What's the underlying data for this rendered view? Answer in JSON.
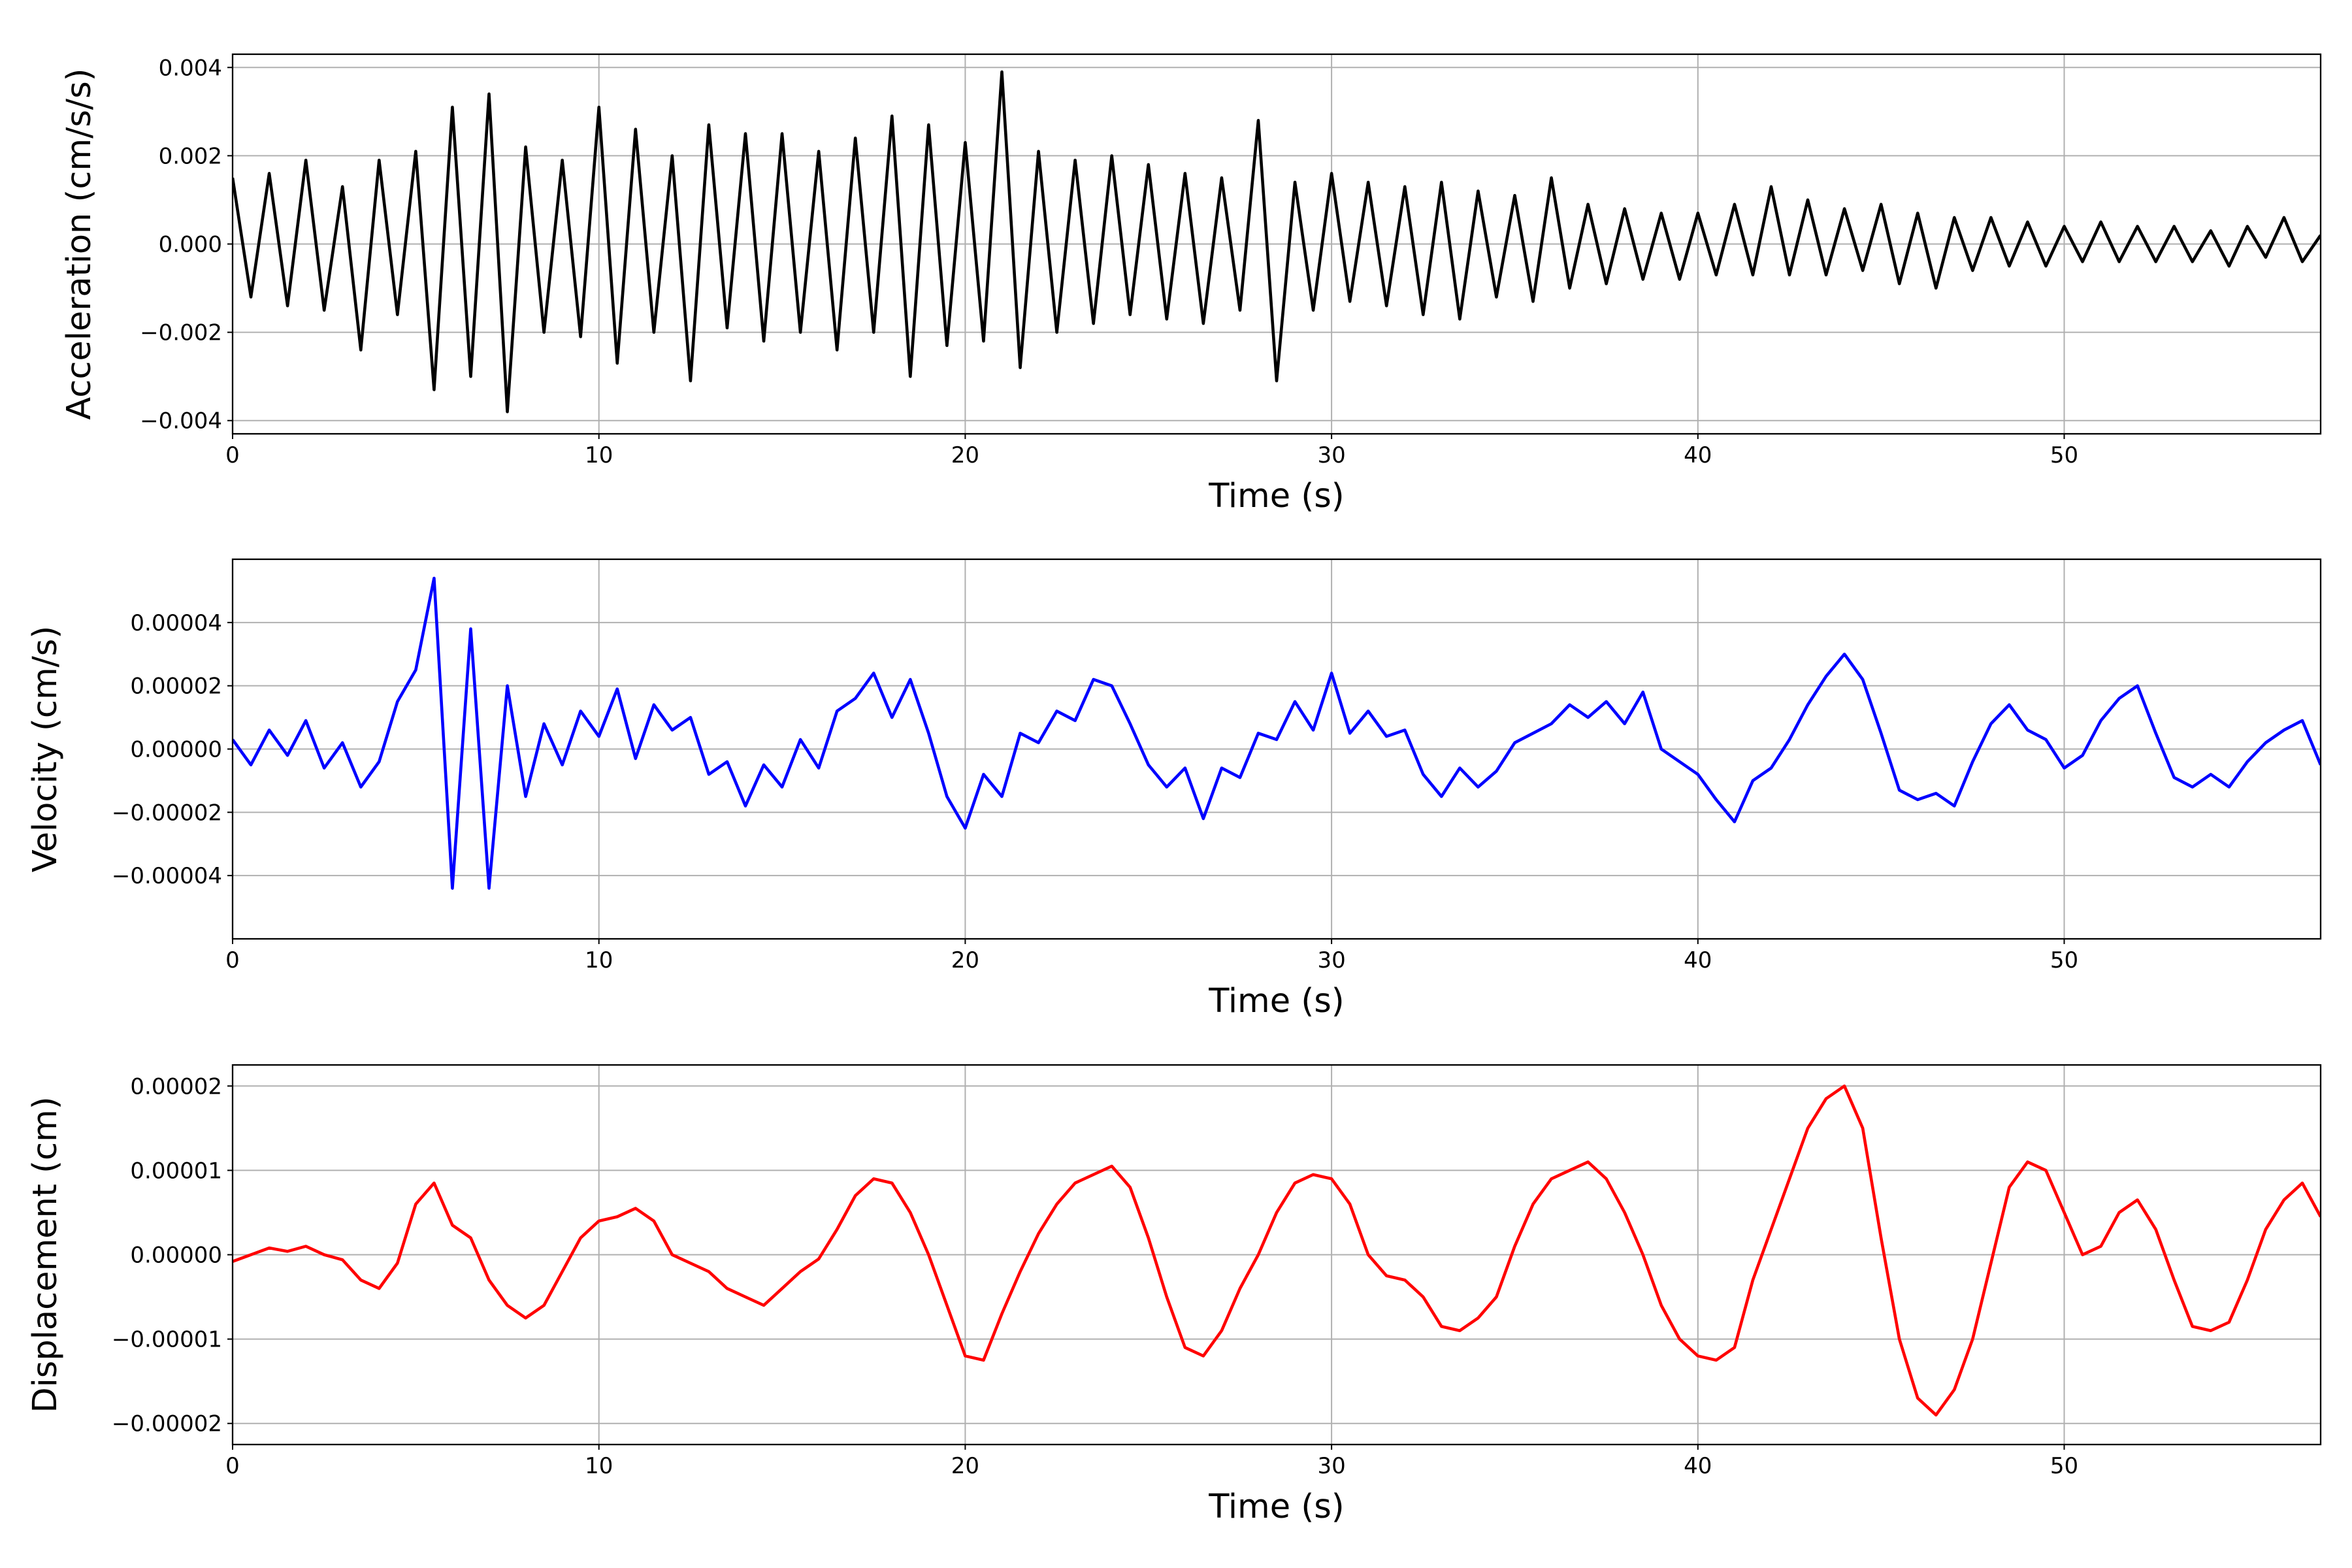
{
  "chart_data": [
    {
      "type": "line",
      "xlabel": "Time (s)",
      "ylabel": "Acceleration (cm/s/s)",
      "x": [
        0,
        0.5,
        1,
        1.5,
        2,
        2.5,
        3,
        3.5,
        4,
        4.5,
        5,
        5.5,
        6,
        6.5,
        7,
        7.5,
        8,
        8.5,
        9,
        9.5,
        10,
        10.5,
        11,
        11.5,
        12,
        12.5,
        13,
        13.5,
        14,
        14.5,
        15,
        15.5,
        16,
        16.5,
        17,
        17.5,
        18,
        18.5,
        19,
        19.5,
        20,
        20.5,
        21,
        21.5,
        22,
        22.5,
        23,
        23.5,
        24,
        24.5,
        25,
        25.5,
        26,
        26.5,
        27,
        27.5,
        28,
        28.5,
        29,
        29.5,
        30,
        30.5,
        31,
        31.5,
        32,
        32.5,
        33,
        33.5,
        34,
        34.5,
        35,
        35.5,
        36,
        36.5,
        37,
        37.5,
        38,
        38.5,
        39,
        39.5,
        40,
        40.5,
        41,
        41.5,
        42,
        42.5,
        43,
        43.5,
        44,
        44.5,
        45,
        45.5,
        46,
        46.5,
        47,
        47.5,
        48,
        48.5,
        49,
        49.5,
        50,
        50.5,
        51,
        51.5,
        52,
        52.5,
        53,
        53.5,
        54,
        54.5,
        55,
        55.5,
        56,
        56.5,
        57
      ],
      "series": [
        {
          "color": "#000000",
          "values": [
            0.0015,
            -0.0012,
            0.0016,
            -0.0014,
            0.0019,
            -0.0015,
            0.0013,
            -0.0024,
            0.0019,
            -0.0016,
            0.0021,
            -0.0033,
            0.0031,
            -0.003,
            0.0034,
            -0.0038,
            0.0022,
            -0.002,
            0.0019,
            -0.0021,
            0.0031,
            -0.0027,
            0.0026,
            -0.002,
            0.002,
            -0.0031,
            0.0027,
            -0.0019,
            0.0025,
            -0.0022,
            0.0025,
            -0.002,
            0.0021,
            -0.0024,
            0.0024,
            -0.002,
            0.0029,
            -0.003,
            0.0027,
            -0.0023,
            0.0023,
            -0.0022,
            0.0039,
            -0.0028,
            0.0021,
            -0.002,
            0.0019,
            -0.0018,
            0.002,
            -0.0016,
            0.0018,
            -0.0017,
            0.0016,
            -0.0018,
            0.0015,
            -0.0015,
            0.0028,
            -0.0031,
            0.0014,
            -0.0015,
            0.0016,
            -0.0013,
            0.0014,
            -0.0014,
            0.0013,
            -0.0016,
            0.0014,
            -0.0017,
            0.0012,
            -0.0012,
            0.0011,
            -0.0013,
            0.0015,
            -0.001,
            0.0009,
            -0.0009,
            0.0008,
            -0.0008,
            0.0007,
            -0.0008,
            0.0007,
            -0.0007,
            0.0009,
            -0.0007,
            0.0013,
            -0.0007,
            0.001,
            -0.0007,
            0.0008,
            -0.0006,
            0.0009,
            -0.0009,
            0.0007,
            -0.001,
            0.0006,
            -0.0006,
            0.0006,
            -0.0005,
            0.0005,
            -0.0005,
            0.0004,
            -0.0004,
            0.0005,
            -0.0004,
            0.0004,
            -0.0004,
            0.0004,
            -0.0004,
            0.0003,
            -0.0005,
            0.0004,
            -0.0003,
            0.0006,
            -0.0004,
            0.0002
          ]
        }
      ],
      "xlim": [
        0,
        57
      ],
      "ylim": [
        -0.0043,
        0.0043
      ],
      "xticks": [
        0,
        10,
        20,
        30,
        40,
        50
      ],
      "yticks": [
        {
          "value": -0.004,
          "label": "−0.004"
        },
        {
          "value": -0.002,
          "label": "−0.002"
        },
        {
          "value": 0,
          "label": "0.000"
        },
        {
          "value": 0.002,
          "label": "0.002"
        },
        {
          "value": 0.004,
          "label": "0.004"
        }
      ],
      "grid": true
    },
    {
      "type": "line",
      "xlabel": "Time (s)",
      "ylabel": "Velocity (cm/s)",
      "x": [
        0,
        0.5,
        1,
        1.5,
        2,
        2.5,
        3,
        3.5,
        4,
        4.5,
        5,
        5.5,
        6,
        6.5,
        7,
        7.5,
        8,
        8.5,
        9,
        9.5,
        10,
        10.5,
        11,
        11.5,
        12,
        12.5,
        13,
        13.5,
        14,
        14.5,
        15,
        15.5,
        16,
        16.5,
        17,
        17.5,
        18,
        18.5,
        19,
        19.5,
        20,
        20.5,
        21,
        21.5,
        22,
        22.5,
        23,
        23.5,
        24,
        24.5,
        25,
        25.5,
        26,
        26.5,
        27,
        27.5,
        28,
        28.5,
        29,
        29.5,
        30,
        30.5,
        31,
        31.5,
        32,
        32.5,
        33,
        33.5,
        34,
        34.5,
        35,
        35.5,
        36,
        36.5,
        37,
        37.5,
        38,
        38.5,
        39,
        39.5,
        40,
        40.5,
        41,
        41.5,
        42,
        42.5,
        43,
        43.5,
        44,
        44.5,
        45,
        45.5,
        46,
        46.5,
        47,
        47.5,
        48,
        48.5,
        49,
        49.5,
        50,
        50.5,
        51,
        51.5,
        52,
        52.5,
        53,
        53.5,
        54,
        54.5,
        55,
        55.5,
        56,
        56.5,
        57
      ],
      "series": [
        {
          "color": "#0000ff",
          "values": [
            3e-06,
            -5e-06,
            6e-06,
            -2e-06,
            9e-06,
            -6e-06,
            2e-06,
            -1.2e-05,
            -4e-06,
            1.5e-05,
            2.5e-05,
            5.4e-05,
            -4.4e-05,
            3.8e-05,
            -4.4e-05,
            2e-05,
            -1.5e-05,
            8e-06,
            -5e-06,
            1.2e-05,
            4e-06,
            1.9e-05,
            -3e-06,
            1.4e-05,
            6e-06,
            1e-05,
            -8e-06,
            -4e-06,
            -1.8e-05,
            -5e-06,
            -1.2e-05,
            3e-06,
            -6e-06,
            1.2e-05,
            1.6e-05,
            2.4e-05,
            1e-05,
            2.2e-05,
            5e-06,
            -1.5e-05,
            -2.5e-05,
            -8e-06,
            -1.5e-05,
            5e-06,
            2e-06,
            1.2e-05,
            9e-06,
            2.2e-05,
            2e-05,
            8e-06,
            -5e-06,
            -1.2e-05,
            -6e-06,
            -2.2e-05,
            -6e-06,
            -9e-06,
            5e-06,
            3e-06,
            1.5e-05,
            6e-06,
            2.4e-05,
            5e-06,
            1.2e-05,
            4e-06,
            6e-06,
            -8e-06,
            -1.5e-05,
            -6e-06,
            -1.2e-05,
            -7e-06,
            2e-06,
            5e-06,
            8e-06,
            1.4e-05,
            1e-05,
            1.5e-05,
            8e-06,
            1.8e-05,
            0,
            -4e-06,
            -8e-06,
            -1.6e-05,
            -2.3e-05,
            -1e-05,
            -6e-06,
            3e-06,
            1.4e-05,
            2.3e-05,
            3e-05,
            2.2e-05,
            5e-06,
            -1.3e-05,
            -1.6e-05,
            -1.4e-05,
            -1.8e-05,
            -4e-06,
            8e-06,
            1.4e-05,
            6e-06,
            3e-06,
            -6e-06,
            -2e-06,
            9e-06,
            1.6e-05,
            2e-05,
            5e-06,
            -9e-06,
            -1.2e-05,
            -8e-06,
            -1.2e-05,
            -4e-06,
            2e-06,
            6e-06,
            9e-06,
            -5e-06
          ]
        }
      ],
      "xlim": [
        0,
        57
      ],
      "ylim": [
        -6e-05,
        6e-05
      ],
      "xticks": [
        0,
        10,
        20,
        30,
        40,
        50
      ],
      "yticks": [
        {
          "value": -4e-05,
          "label": "−0.00004"
        },
        {
          "value": -2e-05,
          "label": "−0.00002"
        },
        {
          "value": 0,
          "label": "0.00000"
        },
        {
          "value": 2e-05,
          "label": "0.00002"
        },
        {
          "value": 4e-05,
          "label": "0.00004"
        }
      ],
      "grid": true
    },
    {
      "type": "line",
      "xlabel": "Time (s)",
      "ylabel": "Displacement (cm)",
      "x": [
        0,
        0.5,
        1,
        1.5,
        2,
        2.5,
        3,
        3.5,
        4,
        4.5,
        5,
        5.5,
        6,
        6.5,
        7,
        7.5,
        8,
        8.5,
        9,
        9.5,
        10,
        10.5,
        11,
        11.5,
        12,
        12.5,
        13,
        13.5,
        14,
        14.5,
        15,
        15.5,
        16,
        16.5,
        17,
        17.5,
        18,
        18.5,
        19,
        19.5,
        20,
        20.5,
        21,
        21.5,
        22,
        22.5,
        23,
        23.5,
        24,
        24.5,
        25,
        25.5,
        26,
        26.5,
        27,
        27.5,
        28,
        28.5,
        29,
        29.5,
        30,
        30.5,
        31,
        31.5,
        32,
        32.5,
        33,
        33.5,
        34,
        34.5,
        35,
        35.5,
        36,
        36.5,
        37,
        37.5,
        38,
        38.5,
        39,
        39.5,
        40,
        40.5,
        41,
        41.5,
        42,
        42.5,
        43,
        43.5,
        44,
        44.5,
        45,
        45.5,
        46,
        46.5,
        47,
        47.5,
        48,
        48.5,
        49,
        49.5,
        50,
        50.5,
        51,
        51.5,
        52,
        52.5,
        53,
        53.5,
        54,
        54.5,
        55,
        55.5,
        56,
        56.5,
        57
      ],
      "series": [
        {
          "color": "#ff0000",
          "values": [
            -8e-07,
            0,
            8e-07,
            4e-07,
            1e-06,
            0,
            -6e-07,
            -3e-06,
            -4e-06,
            -1e-06,
            6e-06,
            8.5e-06,
            3.5e-06,
            2e-06,
            -3e-06,
            -6e-06,
            -7.5e-06,
            -6e-06,
            -2e-06,
            2e-06,
            4e-06,
            4.5e-06,
            5.5e-06,
            4e-06,
            0,
            -1e-06,
            -2e-06,
            -4e-06,
            -5e-06,
            -6e-06,
            -4e-06,
            -2e-06,
            -5e-07,
            3e-06,
            7e-06,
            9e-06,
            8.5e-06,
            5e-06,
            0,
            -6e-06,
            -1.2e-05,
            -1.25e-05,
            -7e-06,
            -2e-06,
            2.5e-06,
            6e-06,
            8.5e-06,
            9.5e-06,
            1.05e-05,
            8e-06,
            2e-06,
            -5e-06,
            -1.1e-05,
            -1.2e-05,
            -9e-06,
            -4e-06,
            0,
            5e-06,
            8.5e-06,
            9.5e-06,
            9e-06,
            6e-06,
            0,
            -2.5e-06,
            -3e-06,
            -5e-06,
            -8.5e-06,
            -9e-06,
            -7.5e-06,
            -5e-06,
            1e-06,
            6e-06,
            9e-06,
            1e-05,
            1.1e-05,
            9e-06,
            5e-06,
            0,
            -6e-06,
            -1e-05,
            -1.2e-05,
            -1.25e-05,
            -1.1e-05,
            -3e-06,
            3e-06,
            9e-06,
            1.5e-05,
            1.85e-05,
            2e-05,
            1.5e-05,
            2e-06,
            -1e-05,
            -1.7e-05,
            -1.9e-05,
            -1.6e-05,
            -1e-05,
            -1e-06,
            8e-06,
            1.1e-05,
            1e-05,
            5e-06,
            0,
            1e-06,
            5e-06,
            6.5e-06,
            3e-06,
            -3e-06,
            -8.5e-06,
            -9e-06,
            -8e-06,
            -3e-06,
            3e-06,
            6.5e-06,
            8.5e-06,
            4.5e-06
          ]
        }
      ],
      "xlim": [
        0,
        57
      ],
      "ylim": [
        -2.25e-05,
        2.25e-05
      ],
      "xticks": [
        0,
        10,
        20,
        30,
        40,
        50
      ],
      "yticks": [
        {
          "value": -2e-05,
          "label": "−0.00002"
        },
        {
          "value": -1e-05,
          "label": "−0.00001"
        },
        {
          "value": 0,
          "label": "0.00000"
        },
        {
          "value": 1e-05,
          "label": "0.00001"
        },
        {
          "value": 2e-05,
          "label": "0.00002"
        }
      ],
      "grid": true
    }
  ]
}
